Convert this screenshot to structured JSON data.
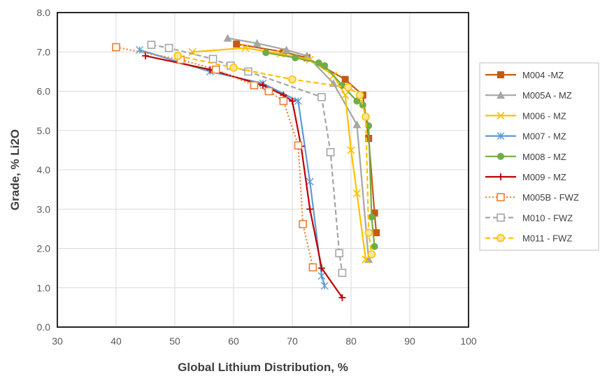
{
  "chart_data": {
    "type": "line",
    "xlabel": "Global Lithium Distribution, %",
    "ylabel": "Grade, % Li2O",
    "xlim": [
      30,
      100
    ],
    "ylim": [
      0.0,
      8.0
    ],
    "x_ticks": [
      "30",
      "40",
      "50",
      "60",
      "70",
      "80",
      "90",
      "100"
    ],
    "y_ticks": [
      "0.0",
      "1.0",
      "2.0",
      "3.0",
      "4.0",
      "5.0",
      "6.0",
      "7.0",
      "8.0"
    ],
    "grid": true,
    "legend_position": "right",
    "series": [
      {
        "name": "M004 -MZ",
        "color": "#c55a11",
        "marker": "square",
        "dash": "solid",
        "x": [
          60.5,
          68.5,
          72.5,
          79.0,
          82.0,
          83.0,
          84.0,
          84.3
        ],
        "y": [
          7.2,
          7.0,
          6.85,
          6.3,
          5.9,
          4.8,
          2.9,
          2.4
        ]
      },
      {
        "name": "M005A - MZ",
        "color": "#a5a5a5",
        "marker": "triangle",
        "dash": "solid",
        "x": [
          59.0,
          64.0,
          69.0,
          72.5,
          77.0,
          81.0,
          83.0
        ],
        "y": [
          7.35,
          7.22,
          7.05,
          6.9,
          6.2,
          5.15,
          1.72
        ]
      },
      {
        "name": "M006 - MZ",
        "color": "#ffc000",
        "marker": "x",
        "dash": "solid",
        "x": [
          53.0,
          62.0,
          68.0,
          73.0,
          77.0,
          79.0,
          80.0,
          81.0,
          82.5
        ],
        "y": [
          7.0,
          7.1,
          6.95,
          6.8,
          6.4,
          5.9,
          4.5,
          3.4,
          1.72
        ]
      },
      {
        "name": "M007 - MZ",
        "color": "#5b9bd5",
        "marker": "asterisk",
        "dash": "solid",
        "x": [
          44.0,
          56.0,
          65.0,
          71.0,
          73.0,
          75.0,
          75.5
        ],
        "y": [
          7.05,
          6.5,
          6.2,
          5.75,
          3.7,
          1.3,
          1.05
        ]
      },
      {
        "name": "M008 - MZ",
        "color": "#70ad47",
        "marker": "circle",
        "dash": "solid",
        "x": [
          65.5,
          70.5,
          74.5,
          75.5,
          78.5,
          81.0,
          82.0,
          83.0,
          83.5,
          84.0
        ],
        "y": [
          6.98,
          6.85,
          6.72,
          6.65,
          6.15,
          5.75,
          5.65,
          5.12,
          2.8,
          2.05
        ]
      },
      {
        "name": "M009 - MZ",
        "color": "#c00000",
        "marker": "plus",
        "dash": "solid",
        "x": [
          45.0,
          56.0,
          65.0,
          68.5,
          70.0,
          71.5,
          73.0,
          75.0,
          78.5
        ],
        "y": [
          6.9,
          6.55,
          6.15,
          5.9,
          5.75,
          4.6,
          3.0,
          1.5,
          0.75
        ]
      },
      {
        "name": "M005B - FWZ",
        "color": "#ed7d31",
        "marker": "open-square",
        "dash": "dotted",
        "x": [
          40.0,
          51.0,
          57.0,
          63.5,
          66.0,
          68.5,
          71.0,
          71.8,
          73.5
        ],
        "y": [
          7.12,
          6.8,
          6.55,
          6.15,
          6.0,
          5.75,
          4.62,
          2.62,
          1.52
        ]
      },
      {
        "name": "M010 - FWZ",
        "color": "#a5a5a5",
        "marker": "open-square",
        "dash": "dashed",
        "x": [
          46.0,
          49.0,
          56.5,
          59.5,
          62.5,
          75.0,
          76.5,
          78.0,
          78.5
        ],
        "y": [
          7.18,
          7.1,
          6.82,
          6.65,
          6.5,
          5.85,
          4.45,
          1.88,
          1.38
        ]
      },
      {
        "name": "M011 - FWZ",
        "color": "#ffc000",
        "marker": "open-circle",
        "dash": "dashed",
        "x": [
          50.5,
          60.0,
          70.0,
          79.5,
          81.5,
          82.5,
          83.0,
          83.5
        ],
        "y": [
          6.9,
          6.6,
          6.3,
          6.1,
          5.9,
          5.35,
          2.4,
          1.85
        ]
      }
    ]
  }
}
